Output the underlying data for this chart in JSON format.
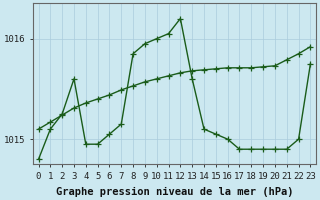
{
  "xlabel": "Graphe pression niveau de la mer (hPa)",
  "background_color": "#cce8f0",
  "plot_bg_color": "#cce8f0",
  "line_color": "#1a5c1a",
  "grid_color": "#aaccdd",
  "axis_color": "#666666",
  "yticks": [
    1015,
    1016
  ],
  "ylim": [
    1014.75,
    1016.35
  ],
  "xlim": [
    -0.5,
    23.5
  ],
  "xticks": [
    0,
    1,
    2,
    3,
    4,
    5,
    6,
    7,
    8,
    9,
    10,
    11,
    12,
    13,
    14,
    15,
    16,
    17,
    18,
    19,
    20,
    21,
    22,
    23
  ],
  "line1_y": [
    1014.8,
    1015.1,
    1015.25,
    1015.6,
    1014.95,
    1014.95,
    1015.05,
    1015.15,
    1015.85,
    1015.95,
    1016.0,
    1016.05,
    1016.2,
    1015.6,
    1015.1,
    1015.05,
    1015.0,
    1014.9,
    1014.9,
    1014.9,
    1014.9,
    1014.9,
    1015.0,
    1015.75
  ],
  "line2_y": [
    1015.1,
    1015.17,
    1015.24,
    1015.31,
    1015.36,
    1015.4,
    1015.44,
    1015.49,
    1015.53,
    1015.57,
    1015.6,
    1015.63,
    1015.66,
    1015.68,
    1015.69,
    1015.7,
    1015.71,
    1015.71,
    1015.71,
    1015.72,
    1015.73,
    1015.79,
    1015.85,
    1015.92
  ],
  "marker_size": 4,
  "linewidth": 1.0,
  "tick_fontsize": 6.5,
  "xlabel_fontsize": 7.5
}
